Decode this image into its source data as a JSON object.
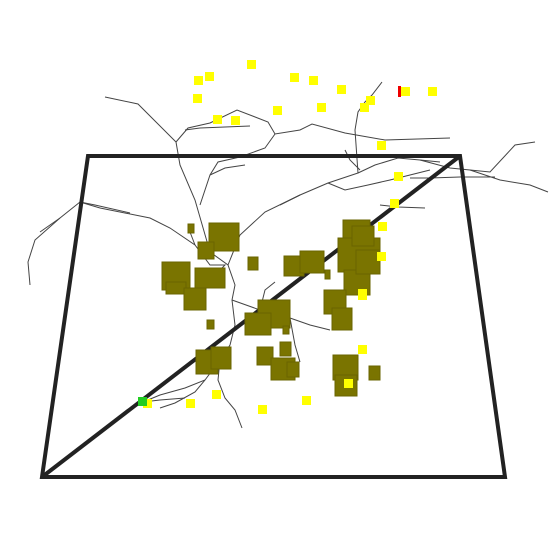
{
  "scene": {
    "background": "#ffffff",
    "colors": {
      "frame": "#222222",
      "branch": "#444444",
      "obstacle": "#7a7400",
      "obstacle_edge": "#6a6400",
      "target": "#ffff00",
      "start": "#22cc22",
      "goal": "#ee0000"
    },
    "obstacle_count": 32,
    "target_count": 32,
    "markers": [
      {
        "name": "start-marker",
        "color_key": "start"
      },
      {
        "name": "goal-marker",
        "color_key": "goal"
      }
    ]
  }
}
